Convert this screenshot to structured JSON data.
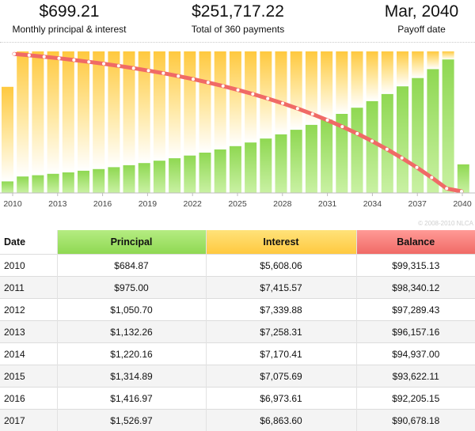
{
  "summary": [
    {
      "value": "$699.21",
      "label": "Monthly principal & interest"
    },
    {
      "value": "$251,717.22",
      "label": "Total of 360 payments"
    },
    {
      "value": "Mar, 2040",
      "label": "Payoff date"
    }
  ],
  "colors": {
    "principal": "#8fd852",
    "interest": "#ffc93f",
    "balance": "#f06a66"
  },
  "chart_data": {
    "type": "bar",
    "stacked": true,
    "x_tick_labels": [
      "2010",
      "2013",
      "2016",
      "2019",
      "2022",
      "2025",
      "2028",
      "2031",
      "2034",
      "2037",
      "2040"
    ],
    "watermark": "© 2008-2010 NLCA",
    "series": [
      {
        "key": "principal",
        "values": [
          684.87,
          975.0,
          1050.7,
          1132.26,
          1220.16,
          1314.89,
          1416.97,
          1526.97,
          1645.5,
          1773.3,
          1910.9,
          2059.3,
          2219.2,
          2391.5,
          2577.1,
          2777.2,
          2992.8,
          3225.1,
          3475.5,
          3745.3,
          4036.1,
          4349.4,
          4687.1,
          5051.0,
          5443.1,
          5865.7,
          6321.0,
          6811.8,
          7340.6,
          7910.5,
          1693.4
        ]
      },
      {
        "key": "interest",
        "values": [
          5608.06,
          7415.57,
          7339.88,
          7258.31,
          7170.41,
          7075.69,
          6973.61,
          6863.6,
          6745.0,
          6617.2,
          6479.6,
          6331.2,
          6171.3,
          5999.0,
          5813.4,
          5613.3,
          5397.7,
          5165.4,
          4915.0,
          4645.2,
          4354.4,
          4041.1,
          3703.4,
          3339.5,
          2947.4,
          2524.8,
          2069.5,
          1578.7,
          1049.9,
          480.0,
          4.2
        ]
      },
      {
        "key": "balance",
        "values": [
          99315.13,
          98340.12,
          97289.43,
          96157.16,
          94937.0,
          93622.11,
          92205.15,
          90678.18,
          89032.7,
          87259.4,
          85348.5,
          83289.2,
          81070.0,
          78678.5,
          76101.4,
          73324.2,
          70331.4,
          67106.3,
          63630.8,
          59885.5,
          55849.4,
          51500.0,
          46812.9,
          41761.9,
          36318.8,
          30453.1,
          24132.1,
          17320.3,
          9979.7,
          2069.2,
          0
        ]
      }
    ],
    "grid": false,
    "legend": "none"
  },
  "table": {
    "headers": {
      "date": "Date",
      "principal": "Principal",
      "interest": "Interest",
      "balance": "Balance"
    },
    "rows": [
      {
        "date": "2010",
        "principal": "$684.87",
        "interest": "$5,608.06",
        "balance": "$99,315.13"
      },
      {
        "date": "2011",
        "principal": "$975.00",
        "interest": "$7,415.57",
        "balance": "$98,340.12"
      },
      {
        "date": "2012",
        "principal": "$1,050.70",
        "interest": "$7,339.88",
        "balance": "$97,289.43"
      },
      {
        "date": "2013",
        "principal": "$1,132.26",
        "interest": "$7,258.31",
        "balance": "$96,157.16"
      },
      {
        "date": "2014",
        "principal": "$1,220.16",
        "interest": "$7,170.41",
        "balance": "$94,937.00"
      },
      {
        "date": "2015",
        "principal": "$1,314.89",
        "interest": "$7,075.69",
        "balance": "$93,622.11"
      },
      {
        "date": "2016",
        "principal": "$1,416.97",
        "interest": "$6,973.61",
        "balance": "$92,205.15"
      },
      {
        "date": "2017",
        "principal": "$1,526.97",
        "interest": "$6,863.60",
        "balance": "$90,678.18"
      }
    ]
  }
}
